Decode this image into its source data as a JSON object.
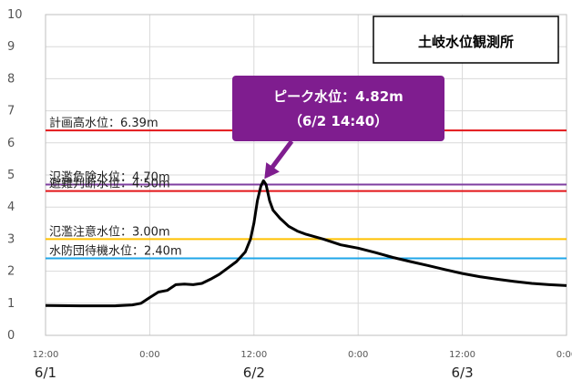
{
  "chart_data": {
    "type": "line",
    "title": "土岐水位観測所",
    "ylim": [
      0,
      10
    ],
    "y_ticks": [
      "0",
      "1",
      "2",
      "3",
      "4",
      "5",
      "6",
      "7",
      "8",
      "9",
      "10"
    ],
    "x_ticks": [
      "12:00",
      "0:00",
      "12:00",
      "0:00",
      "12:00",
      "0:00"
    ],
    "date_labels": [
      "6/1",
      "6/2",
      "6/3"
    ],
    "grid": true,
    "series": [
      {
        "color": "#000000",
        "points": [
          [
            0,
            0.93
          ],
          [
            4,
            0.92
          ],
          [
            8,
            0.92
          ],
          [
            10,
            0.95
          ],
          [
            11,
            1.0
          ],
          [
            12,
            1.18
          ],
          [
            13,
            1.35
          ],
          [
            14,
            1.4
          ],
          [
            15,
            1.58
          ],
          [
            16,
            1.6
          ],
          [
            17,
            1.58
          ],
          [
            18,
            1.62
          ],
          [
            19,
            1.75
          ],
          [
            20,
            1.9
          ],
          [
            21,
            2.1
          ],
          [
            22,
            2.3
          ],
          [
            23,
            2.6
          ],
          [
            23.6,
            3.0
          ],
          [
            24,
            3.5
          ],
          [
            24.4,
            4.2
          ],
          [
            24.8,
            4.65
          ],
          [
            25.1,
            4.82
          ],
          [
            25.4,
            4.7
          ],
          [
            25.8,
            4.2
          ],
          [
            26.2,
            3.9
          ],
          [
            27,
            3.65
          ],
          [
            28,
            3.4
          ],
          [
            29,
            3.25
          ],
          [
            30,
            3.15
          ],
          [
            32,
            3.0
          ],
          [
            34,
            2.82
          ],
          [
            36,
            2.72
          ],
          [
            38,
            2.58
          ],
          [
            40,
            2.43
          ],
          [
            42,
            2.3
          ],
          [
            44,
            2.18
          ],
          [
            46,
            2.05
          ],
          [
            48,
            1.93
          ],
          [
            50,
            1.83
          ],
          [
            52,
            1.75
          ],
          [
            54,
            1.68
          ],
          [
            56,
            1.62
          ],
          [
            58,
            1.58
          ],
          [
            60,
            1.55
          ]
        ]
      }
    ],
    "reference_lines": [
      {
        "label": "計画高水位：6.39m",
        "value": 6.39,
        "color": "#e3161a"
      },
      {
        "label": "氾濫危険水位：4.70m",
        "value": 4.7,
        "color": "#7f3fa0"
      },
      {
        "label": "避難判断水位：4.50m",
        "value": 4.5,
        "color": "#e3161a"
      },
      {
        "label": "氾濫注意水位：3.00m",
        "value": 3.0,
        "color": "#ffc000"
      },
      {
        "label": "水防団待機水位：2.40m",
        "value": 2.4,
        "color": "#1fa6e8"
      }
    ],
    "annotation": {
      "line1": "ピーク水位：4.82m",
      "line2": "（6/2 14:40）",
      "x": 25.1,
      "y": 4.82,
      "color": "#7f1d8f"
    }
  }
}
